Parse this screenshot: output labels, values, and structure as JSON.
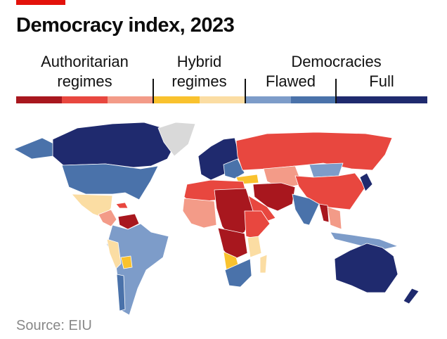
{
  "title": "Democracy index, 2023",
  "legend": {
    "authoritarian": "Authoritarian regimes",
    "authoritarian_line1": "Authoritarian",
    "authoritarian_line2": "regimes",
    "hybrid_line1": "Hybrid",
    "hybrid_line2": "regimes",
    "democracies": "Democracies",
    "flawed": "Flawed",
    "full": "Full",
    "colors": [
      "#a8171e",
      "#e8473f",
      "#f39b88",
      "#f9c22e",
      "#fbdda3",
      "#7d9cc9",
      "#4a72aa",
      "#1f2a6e"
    ],
    "no_data_color": "#d9d9d9"
  },
  "source": "Source: EIU"
}
